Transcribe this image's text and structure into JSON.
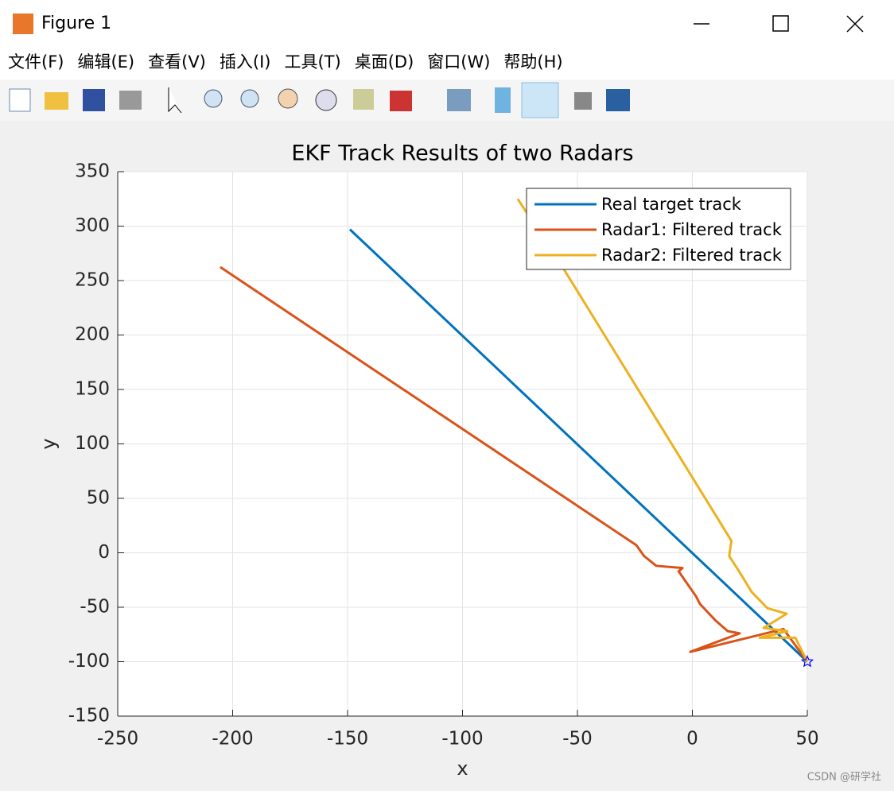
{
  "window": {
    "title": "Figure 1",
    "menu": [
      "文件(F)",
      "编辑(E)",
      "查看(V)",
      "插入(I)",
      "工具(T)",
      "桌面(D)",
      "窗口(W)",
      "帮助(H)"
    ]
  },
  "watermark": "CSDN @研学社",
  "chart_data": {
    "type": "line",
    "title": "EKF Track Results of two Radars",
    "x_label": "x",
    "y_label": "y",
    "xlim": [
      -250,
      50
    ],
    "xticks": [
      -250,
      -200,
      -150,
      -100,
      -50,
      0,
      50
    ],
    "ylim": [
      -150,
      350
    ],
    "yticks": [
      -150,
      -100,
      -50,
      0,
      50,
      100,
      150,
      200,
      250,
      300,
      350
    ],
    "grid": true,
    "legend": "upper right",
    "series": [
      {
        "name": "Real target track",
        "color": "#0072bd",
        "x": [
          -149,
          50
        ],
        "values": [
          297,
          -100
        ]
      },
      {
        "name": "Radar1: Filtered track",
        "color": "#d95319",
        "x": [
          -205.4,
          -24.4,
          -21,
          -15.7,
          -4.3,
          -6,
          1.6,
          3.3,
          10,
          15.4,
          20.6,
          -0.9,
          39.6,
          50
        ],
        "values": [
          262.4,
          7,
          -3,
          -12,
          -14,
          -17,
          -40,
          -47,
          -62,
          -72,
          -74,
          -91,
          -70,
          -100
        ]
      },
      {
        "name": "Radar2: Filtered track",
        "color": "#edb120",
        "x": [
          -76,
          -55.5,
          17,
          16,
          20.6,
          25.8,
          32.7,
          41,
          31,
          41.3,
          29.3,
          44.8,
          50
        ],
        "values": [
          325,
          259,
          11,
          -3,
          -18,
          -36,
          -51,
          -56,
          -69,
          -72,
          -78,
          -78,
          -100
        ]
      }
    ],
    "markers": [
      {
        "x": 50,
        "y": -100,
        "color": "#0000ff"
      }
    ]
  }
}
